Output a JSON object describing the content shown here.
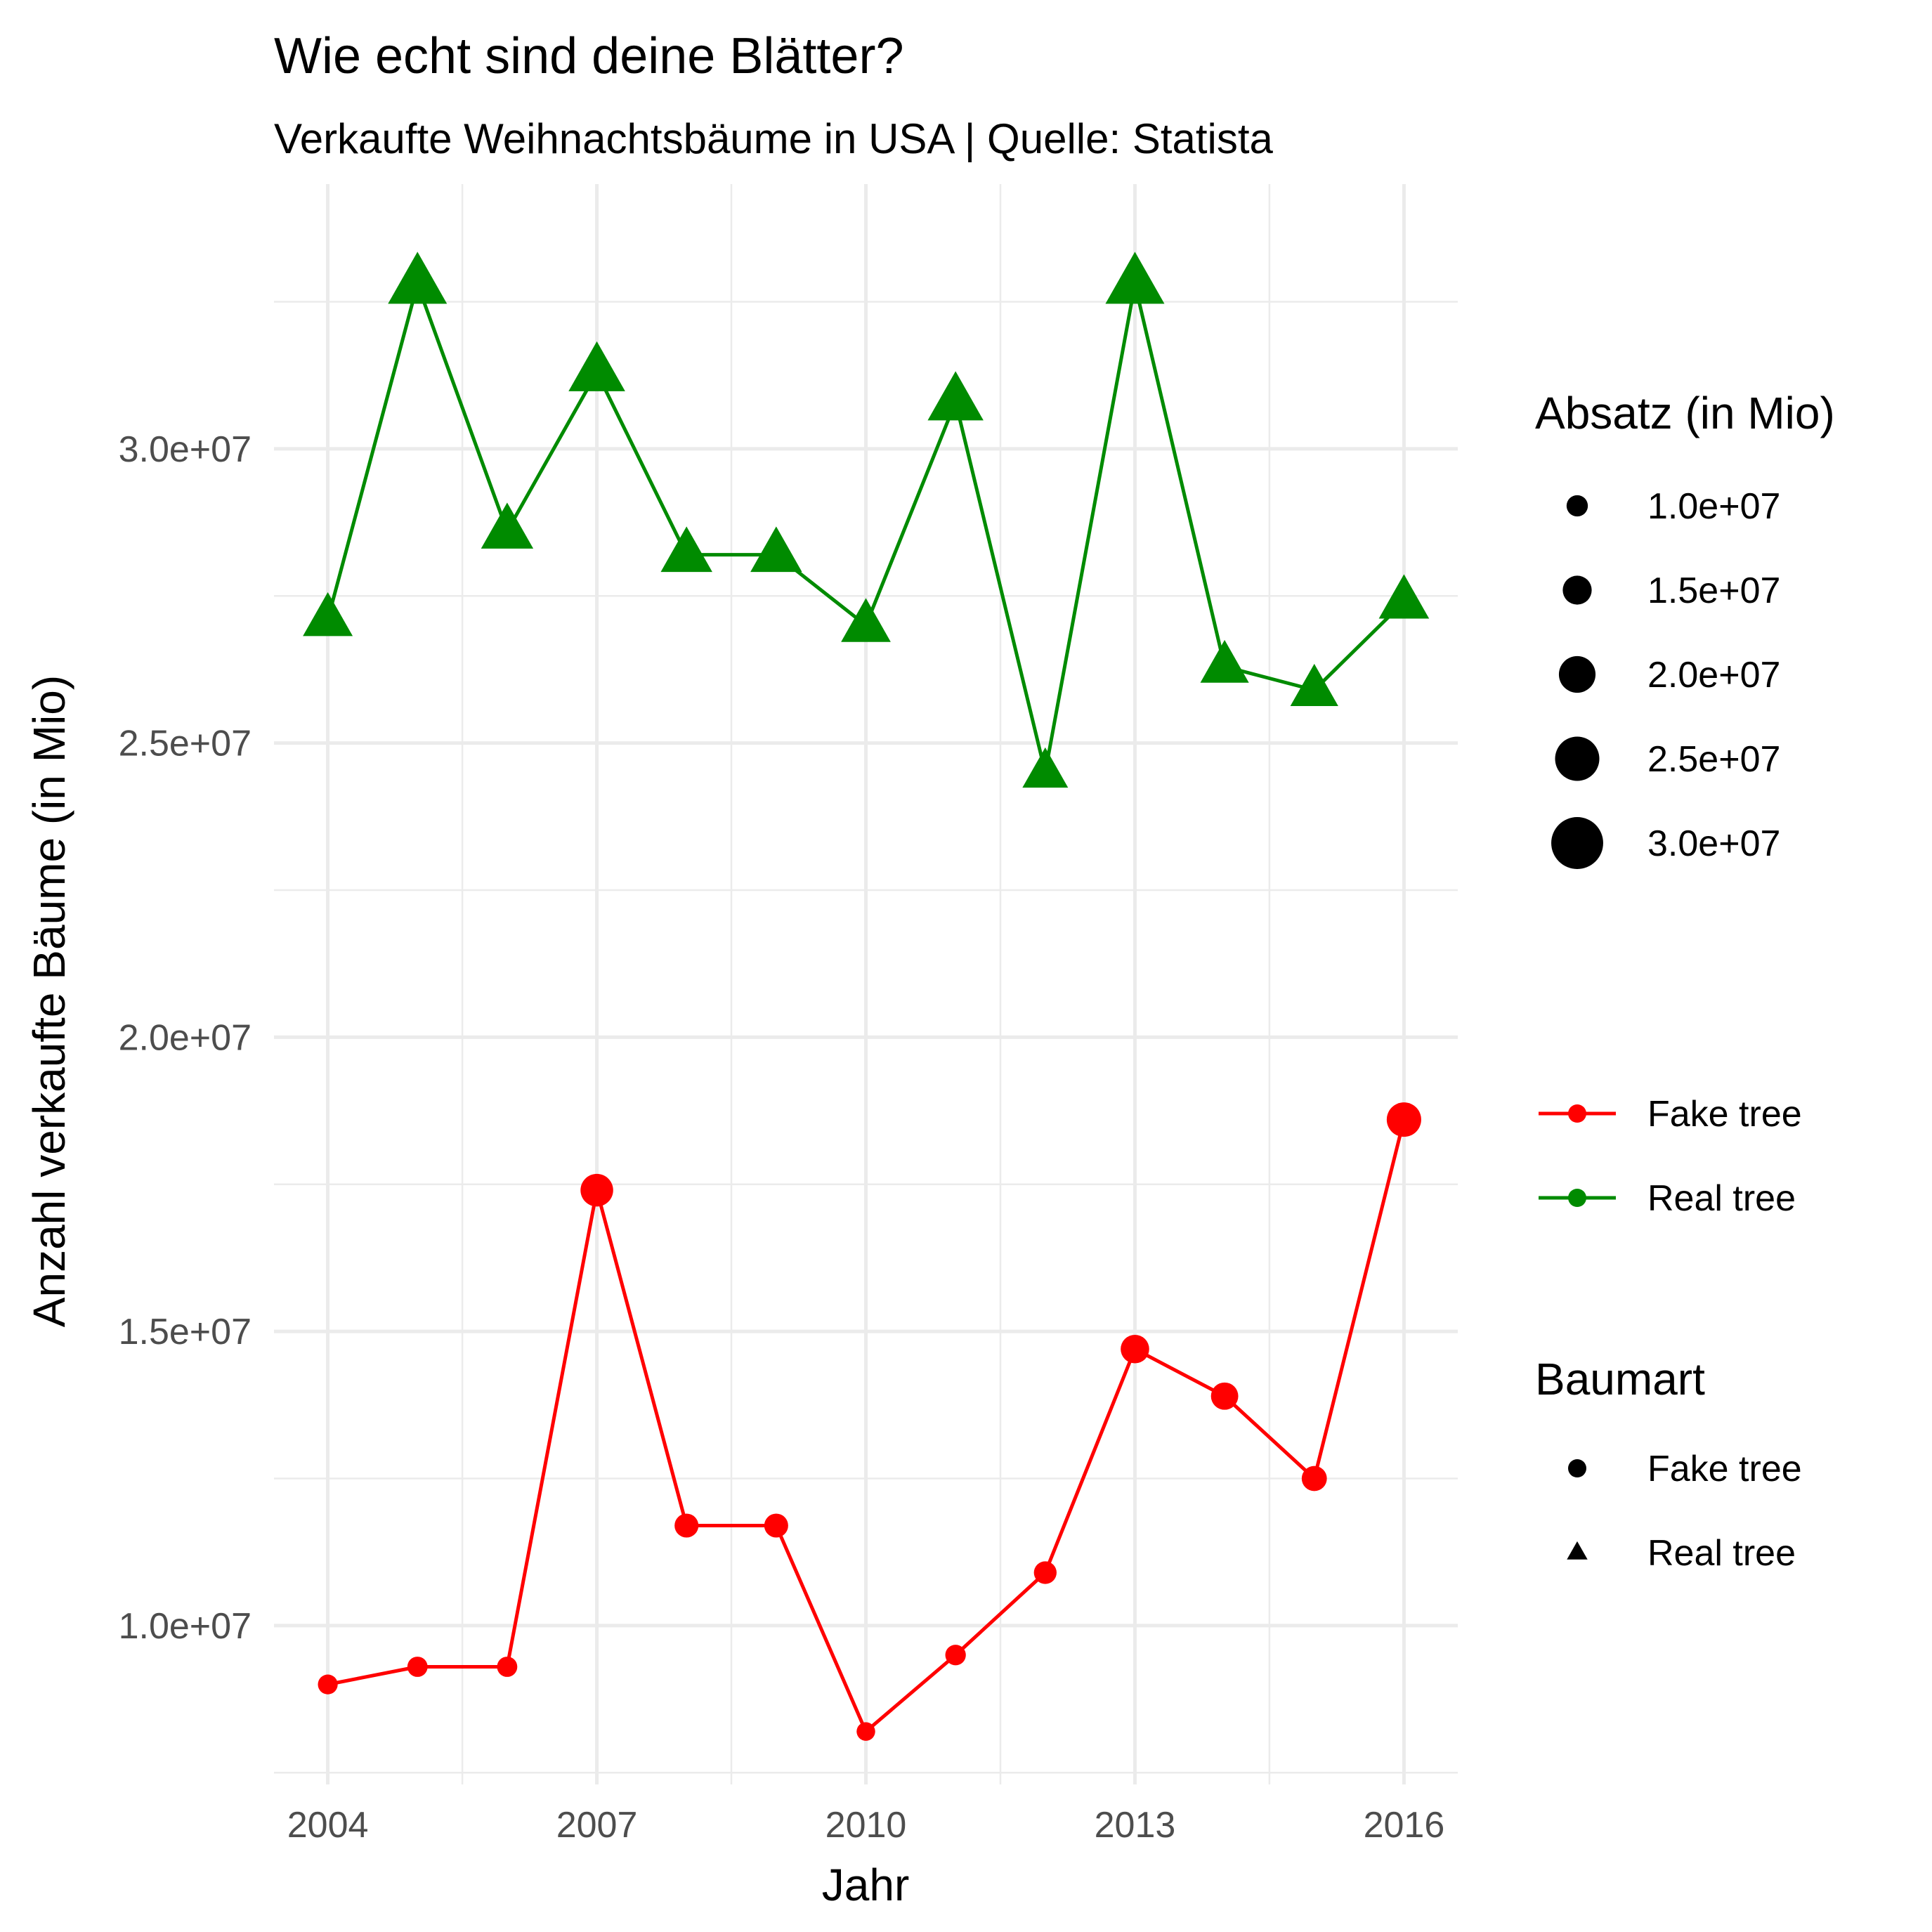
{
  "chart_data": {
    "type": "line",
    "title": "Wie echt sind deine Blätter?",
    "subtitle": "Verkaufte Weihnachtsbäume in USA | Quelle: Statista",
    "xlabel": "Jahr",
    "ylabel": "Anzahl verkaufte Bäume (in Mio)",
    "x": [
      2004,
      2005,
      2006,
      2007,
      2008,
      2009,
      2010,
      2011,
      2012,
      2013,
      2014,
      2015,
      2016
    ],
    "xlim": [
      2003.4,
      2016.6
    ],
    "ylim": [
      7300000,
      34500000
    ],
    "x_ticks": [
      2004,
      2007,
      2010,
      2013,
      2016
    ],
    "x_tick_labels": [
      "2004",
      "2007",
      "2010",
      "2013",
      "2016"
    ],
    "y_ticks": [
      10000000,
      15000000,
      20000000,
      25000000,
      30000000
    ],
    "y_tick_labels": [
      "1.0e+07",
      "1.5e+07",
      "2.0e+07",
      "2.5e+07",
      "3.0e+07"
    ],
    "grid": true,
    "series": [
      {
        "name": "Fake tree",
        "color": "#ff0000",
        "shape": "circle",
        "values": [
          9000000,
          9300000,
          9300000,
          17400000,
          11700000,
          11700000,
          8200000,
          9500000,
          10900000,
          14700000,
          13900000,
          12500000,
          18600000
        ]
      },
      {
        "name": "Real tree",
        "color": "#008b00",
        "shape": "triangle",
        "values": [
          27100000,
          32800000,
          28600000,
          31300000,
          28200000,
          28200000,
          27000000,
          30800000,
          24500000,
          32800000,
          26300000,
          25900000,
          27400000
        ]
      }
    ],
    "legends": {
      "size": {
        "title": "Absatz (in Mio)",
        "values": [
          10000000,
          15000000,
          20000000,
          25000000,
          30000000
        ],
        "labels": [
          "1.0e+07",
          "1.5e+07",
          "2.0e+07",
          "2.5e+07",
          "3.0e+07"
        ]
      },
      "color": {
        "labels": [
          "Fake tree",
          "Real tree"
        ]
      },
      "shape": {
        "title": "Baumart",
        "labels": [
          "Fake tree",
          "Real tree"
        ]
      },
      "placement": "right"
    }
  }
}
